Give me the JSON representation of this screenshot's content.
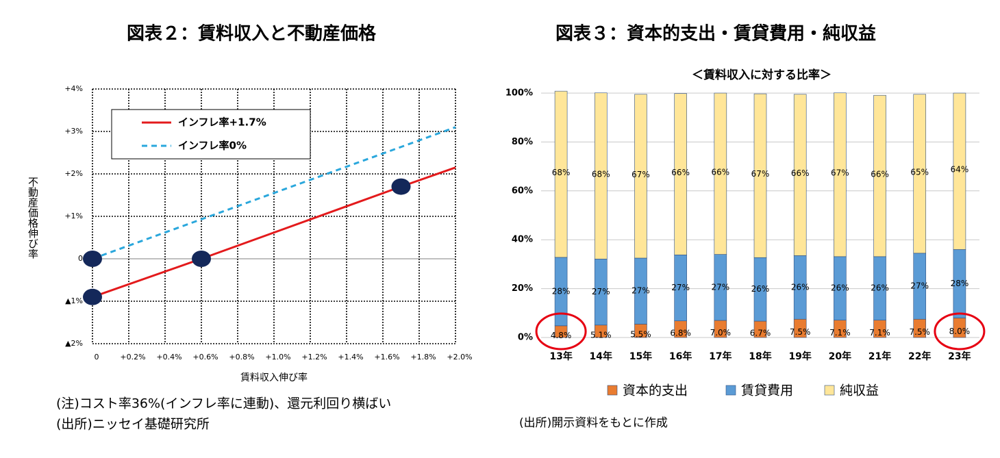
{
  "chart_data": [
    {
      "type": "line",
      "title": "図表２：賃料収入と不動産価格",
      "x_label": "賃料収入伸び率",
      "y_label": "不動産価格伸び率",
      "xlim": [
        0,
        2.0
      ],
      "ylim": [
        -2,
        4
      ],
      "xticks": [
        0,
        {
          "value": 0.2,
          "label": "+0.2%"
        },
        {
          "value": 0.4,
          "label": "+0.4%"
        },
        {
          "value": 0.6,
          "label": "+0.6%"
        },
        {
          "value": 0.8,
          "label": "+0.8%"
        },
        {
          "value": 1.0,
          "label": "+1.0%"
        },
        {
          "value": 1.2,
          "label": "+1.2%"
        },
        {
          "value": 1.4,
          "label": "+1.4%"
        },
        {
          "value": 1.6,
          "label": "+1.6%"
        },
        {
          "value": 1.8,
          "label": "+1.8%"
        },
        {
          "value": 2.0,
          "label": "+2.0%"
        }
      ],
      "yticks": [
        {
          "value": -2,
          "label": "▲2%"
        },
        {
          "value": -1,
          "label": "▲1%"
        },
        0,
        {
          "value": 1,
          "label": "+1%"
        },
        {
          "value": 2,
          "label": "+2%"
        },
        {
          "value": 3,
          "label": "+3%"
        },
        {
          "value": 4,
          "label": "+4%"
        }
      ],
      "grid": true,
      "legend": "upper left",
      "series": [
        {
          "name": "インフレ率+1.7%",
          "color": "#e31a1c",
          "dash": false,
          "x": [
            0,
            0.6,
            1.7,
            2.0
          ],
          "values": [
            -0.9,
            0,
            1.7,
            2.15
          ]
        },
        {
          "name": "インフレ率0%",
          "color": "#2aa7dc",
          "dash": true,
          "x": [
            0,
            2.0
          ],
          "values": [
            0,
            3.1
          ]
        }
      ],
      "points": {
        "color": "#14285a",
        "x": [
          0,
          0,
          0.6,
          1.7
        ],
        "y": [
          0,
          -0.9,
          0,
          1.7
        ]
      },
      "notes": [
        "(注)コスト率36%(インフレ率に連動)、還元利回り横ばい",
        "(出所)ニッセイ基礎研究所"
      ]
    },
    {
      "type": "stacked_bar",
      "title": "図表３：資本的支出・賃貸費用・純収益",
      "subtitle": "＜賃料収入に対する比率＞",
      "categories": [
        "13年",
        "14年",
        "15年",
        "16年",
        "17年",
        "18年",
        "19年",
        "20年",
        "21年",
        "22年",
        "23年"
      ],
      "ylim": [
        0,
        100
      ],
      "yticks": [
        {
          "value": 0,
          "label": "0%"
        },
        {
          "value": 20,
          "label": "20%"
        },
        {
          "value": 40,
          "label": "40%"
        },
        {
          "value": 60,
          "label": "60%"
        },
        {
          "value": 80,
          "label": "80%"
        },
        {
          "value": 100,
          "label": "100%"
        }
      ],
      "grid": true,
      "legend": "bottom",
      "series": [
        {
          "name": "資本的支出",
          "color": "#e97c30",
          "values": [
            4.8,
            5.1,
            5.5,
            6.8,
            7.0,
            6.7,
            7.5,
            7.1,
            7.1,
            7.5,
            8.0
          ],
          "value_labels": [
            "4.8%",
            "5.1%",
            "5.5%",
            "6.8%",
            "7.0%",
            "6.7%",
            "7.5%",
            "7.1%",
            "7.1%",
            "7.5%",
            "8.0%"
          ]
        },
        {
          "name": "賃貸費用",
          "color": "#5b9bd5",
          "values": [
            28,
            27,
            27,
            27,
            27,
            26,
            26,
            26,
            26,
            27,
            28
          ],
          "value_labels": [
            "28%",
            "27%",
            "27%",
            "27%",
            "27%",
            "26%",
            "26%",
            "26%",
            "26%",
            "27%",
            "28%"
          ]
        },
        {
          "name": "純収益",
          "color": "#ffe699",
          "values": [
            68,
            68,
            67,
            66,
            66,
            67,
            66,
            67,
            66,
            65,
            64
          ],
          "value_labels": [
            "68%",
            "68%",
            "67%",
            "66%",
            "66%",
            "67%",
            "66%",
            "67%",
            "66%",
            "65%",
            "64%"
          ]
        }
      ],
      "notes": [
        "(出所)開示資料をもとに作成"
      ]
    }
  ]
}
